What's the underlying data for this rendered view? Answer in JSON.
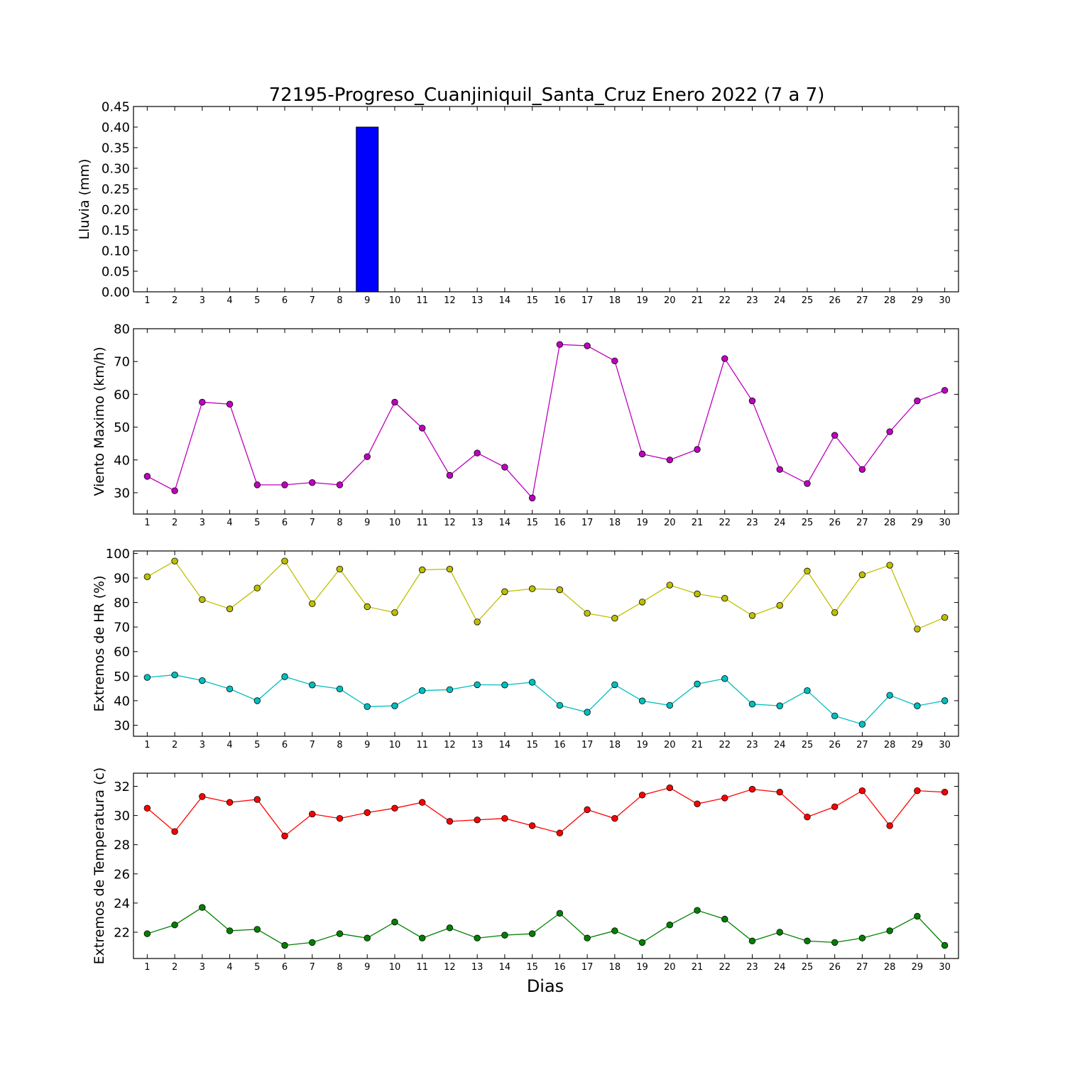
{
  "chart_data": {
    "title": "72195-Progreso_Cuanjiniquil_Santa_Cruz Enero 2022  (7 a 7)",
    "xlabel": "Dias",
    "days": [
      1,
      2,
      3,
      4,
      5,
      6,
      7,
      8,
      9,
      10,
      11,
      12,
      13,
      14,
      15,
      16,
      17,
      18,
      19,
      20,
      21,
      22,
      23,
      24,
      25,
      26,
      27,
      28,
      29,
      30
    ],
    "panels": [
      {
        "type": "bar",
        "ylabel": "Lluvia (mm)",
        "ylim": [
          0,
          0.45
        ],
        "yticks": [
          "0.00",
          "0.05",
          "0.10",
          "0.15",
          "0.20",
          "0.25",
          "0.30",
          "0.35",
          "0.40",
          "0.45"
        ],
        "series": [
          {
            "color": "#0000ff",
            "values": [
              0,
              0,
              0,
              0,
              0,
              0,
              0,
              0,
              0.4,
              0,
              0,
              0,
              0,
              0,
              0,
              0,
              0,
              0,
              0,
              0,
              0,
              0,
              0,
              0,
              0,
              0,
              0,
              0,
              0,
              0
            ]
          }
        ]
      },
      {
        "type": "line",
        "ylabel": "Viento Maximo (km/h)",
        "ylim": [
          23.5,
          80
        ],
        "yticks": [
          "30",
          "40",
          "50",
          "60",
          "70",
          "80"
        ],
        "series": [
          {
            "color": "#bf00bf",
            "values": [
              35,
              30.6,
              57.6,
              57,
              32.4,
              32.4,
              33.1,
              32.4,
              41,
              57.6,
              49.7,
              35.3,
              42.1,
              37.8,
              28.4,
              75.2,
              74.8,
              70.2,
              41.8,
              40,
              43.2,
              70.9,
              58,
              37.1,
              32.8,
              47.5,
              37.1,
              48.6,
              58,
              61.2
            ]
          }
        ]
      },
      {
        "type": "line",
        "ylabel": "Extremos de HR (%)",
        "ylim": [
          25.5,
          101
        ],
        "yticks": [
          "30",
          "40",
          "50",
          "60",
          "70",
          "80",
          "90",
          "100"
        ],
        "series": [
          {
            "color": "#bfbf00",
            "values": [
              90.5,
              96.9,
              81.2,
              77.4,
              85.9,
              96.9,
              79.5,
              93.6,
              78.3,
              75.9,
              93.3,
              93.6,
              72.1,
              84.4,
              85.6,
              85.2,
              75.6,
              73.6,
              80.2,
              87.1,
              83.5,
              81.7,
              74.7,
              78.8,
              92.8,
              75.9,
              91.3,
              95.2,
              69.2,
              73.9
            ]
          },
          {
            "color": "#00bfbf",
            "values": [
              49.5,
              50.5,
              48.2,
              44.8,
              40,
              49.8,
              46.4,
              44.8,
              37.6,
              37.9,
              44.1,
              44.5,
              46.5,
              46.4,
              47.5,
              38.1,
              35.3,
              46.5,
              39.9,
              38.1,
              46.8,
              49,
              38.6,
              37.9,
              44.1,
              33.8,
              30.4,
              42.2,
              37.9,
              40
            ]
          }
        ]
      },
      {
        "type": "line",
        "ylabel": "Extremos de Temperatura (c)",
        "ylim": [
          20.2,
          32.9
        ],
        "yticks": [
          "22",
          "24",
          "26",
          "28",
          "30",
          "32"
        ],
        "series": [
          {
            "color": "#ff0000",
            "values": [
              30.5,
              28.9,
              31.3,
              30.9,
              31.1,
              28.6,
              30.1,
              29.8,
              30.2,
              30.5,
              30.9,
              29.6,
              29.7,
              29.8,
              29.3,
              28.8,
              30.4,
              29.8,
              31.4,
              31.9,
              30.8,
              31.2,
              31.8,
              31.6,
              29.9,
              30.6,
              31.7,
              29.3,
              31.7,
              31.6
            ]
          },
          {
            "color": "#008000",
            "values": [
              21.9,
              22.5,
              23.7,
              22.1,
              22.2,
              21.1,
              21.3,
              21.9,
              21.6,
              22.7,
              21.6,
              22.3,
              21.6,
              21.8,
              21.9,
              23.3,
              21.6,
              22.1,
              21.3,
              22.5,
              23.5,
              22.9,
              21.4,
              22,
              21.4,
              21.3,
              21.6,
              22.1,
              23.1,
              21.1
            ]
          }
        ]
      }
    ]
  }
}
